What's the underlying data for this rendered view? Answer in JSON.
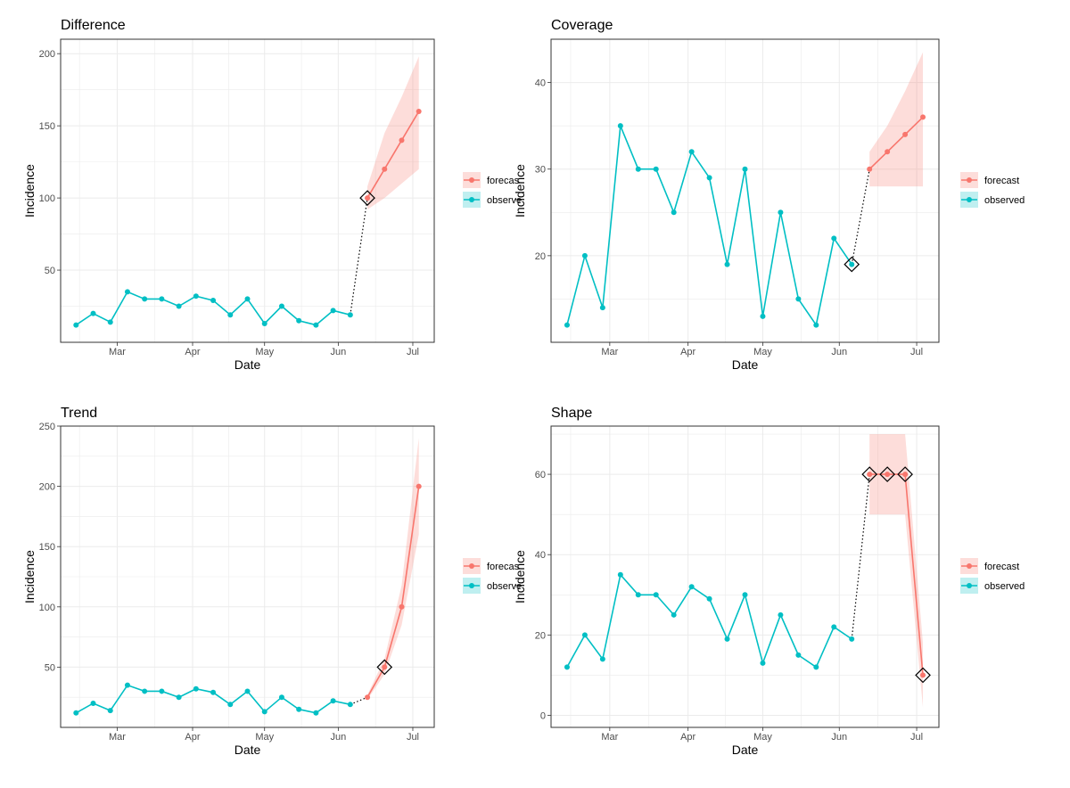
{
  "chart_data": [
    {
      "type": "line",
      "title": "Difference",
      "xlabel": "Date",
      "ylabel": "Incidence",
      "ylim": [
        0,
        210
      ],
      "yticks": [
        50,
        100,
        150,
        200
      ],
      "xticks": [
        "Mar",
        "Apr",
        "May",
        "Jun",
        "Jul"
      ],
      "legend": "right",
      "series": [
        {
          "name": "observed",
          "color": "#00BFC4",
          "x": [
            0,
            1,
            2,
            3,
            4,
            5,
            6,
            7,
            8,
            9,
            10,
            11,
            12,
            13,
            14,
            15,
            16
          ],
          "values": [
            12,
            20,
            14,
            35,
            30,
            30,
            25,
            32,
            29,
            19,
            30,
            13,
            25,
            15,
            12,
            22,
            19
          ]
        },
        {
          "name": "forecast",
          "color": "#F8766D",
          "x": [
            17,
            18,
            19,
            20
          ],
          "values": [
            100,
            120,
            140,
            160
          ],
          "lower": [
            92,
            100,
            110,
            120
          ],
          "upper": [
            108,
            145,
            170,
            198
          ]
        }
      ],
      "connector": [
        16,
        17
      ],
      "markers": [
        17
      ]
    },
    {
      "type": "line",
      "title": "Coverage",
      "xlabel": "Date",
      "ylabel": "Incidence",
      "ylim": [
        10,
        45
      ],
      "yticks": [
        20,
        30,
        40
      ],
      "xticks": [
        "Mar",
        "Apr",
        "May",
        "Jun",
        "Jul"
      ],
      "legend": "right",
      "series": [
        {
          "name": "observed",
          "color": "#00BFC4",
          "x": [
            0,
            1,
            2,
            3,
            4,
            5,
            6,
            7,
            8,
            9,
            10,
            11,
            12,
            13,
            14,
            15,
            16
          ],
          "values": [
            12,
            20,
            14,
            35,
            30,
            30,
            25,
            32,
            29,
            19,
            30,
            13,
            25,
            15,
            12,
            22,
            19
          ]
        },
        {
          "name": "forecast",
          "color": "#F8766D",
          "x": [
            17,
            18,
            19,
            20
          ],
          "values": [
            30,
            32,
            34,
            36
          ],
          "lower": [
            28,
            28,
            28,
            28
          ],
          "upper": [
            32,
            35,
            39,
            43.5
          ]
        }
      ],
      "connector": [
        16,
        17
      ],
      "markers": [
        16
      ]
    },
    {
      "type": "line",
      "title": "Trend",
      "xlabel": "Date",
      "ylabel": "Incidence",
      "ylim": [
        0,
        250
      ],
      "yticks": [
        50,
        100,
        150,
        200,
        250
      ],
      "xticks": [
        "Mar",
        "Apr",
        "May",
        "Jun",
        "Jul"
      ],
      "legend": "right",
      "series": [
        {
          "name": "observed",
          "color": "#00BFC4",
          "x": [
            0,
            1,
            2,
            3,
            4,
            5,
            6,
            7,
            8,
            9,
            10,
            11,
            12,
            13,
            14,
            15,
            16
          ],
          "values": [
            12,
            20,
            14,
            35,
            30,
            30,
            25,
            32,
            29,
            19,
            30,
            13,
            25,
            15,
            12,
            22,
            19
          ]
        },
        {
          "name": "forecast",
          "color": "#F8766D",
          "x": [
            17,
            18,
            19,
            20
          ],
          "values": [
            25,
            50,
            100,
            200
          ],
          "lower": [
            23,
            44,
            85,
            160
          ],
          "upper": [
            27,
            57,
            118,
            240
          ]
        }
      ],
      "connector": [
        16,
        17
      ],
      "markers": [
        18
      ]
    },
    {
      "type": "line",
      "title": "Shape",
      "xlabel": "Date",
      "ylabel": "Incidence",
      "ylim": [
        -3,
        72
      ],
      "yticks": [
        0,
        20,
        40,
        60
      ],
      "xticks": [
        "Mar",
        "Apr",
        "May",
        "Jun",
        "Jul"
      ],
      "legend": "right",
      "series": [
        {
          "name": "observed",
          "color": "#00BFC4",
          "x": [
            0,
            1,
            2,
            3,
            4,
            5,
            6,
            7,
            8,
            9,
            10,
            11,
            12,
            13,
            14,
            15,
            16
          ],
          "values": [
            12,
            20,
            14,
            35,
            30,
            30,
            25,
            32,
            29,
            19,
            30,
            13,
            25,
            15,
            12,
            22,
            19
          ]
        },
        {
          "name": "forecast",
          "color": "#F8766D",
          "x": [
            17,
            18,
            19,
            20
          ],
          "values": [
            60,
            60,
            60,
            10
          ],
          "lower": [
            50,
            50,
            50,
            2
          ],
          "upper": [
            70,
            70,
            70,
            18
          ]
        }
      ],
      "connector": [
        16,
        17
      ],
      "markers": [
        17,
        18,
        19,
        20
      ]
    }
  ],
  "legend_labels": {
    "p0": [
      "forecas",
      "observe"
    ],
    "p1": [
      "forecast",
      "observed"
    ],
    "p2": [
      "forecas",
      "observe"
    ],
    "p3": [
      "forecast",
      "observed"
    ]
  }
}
